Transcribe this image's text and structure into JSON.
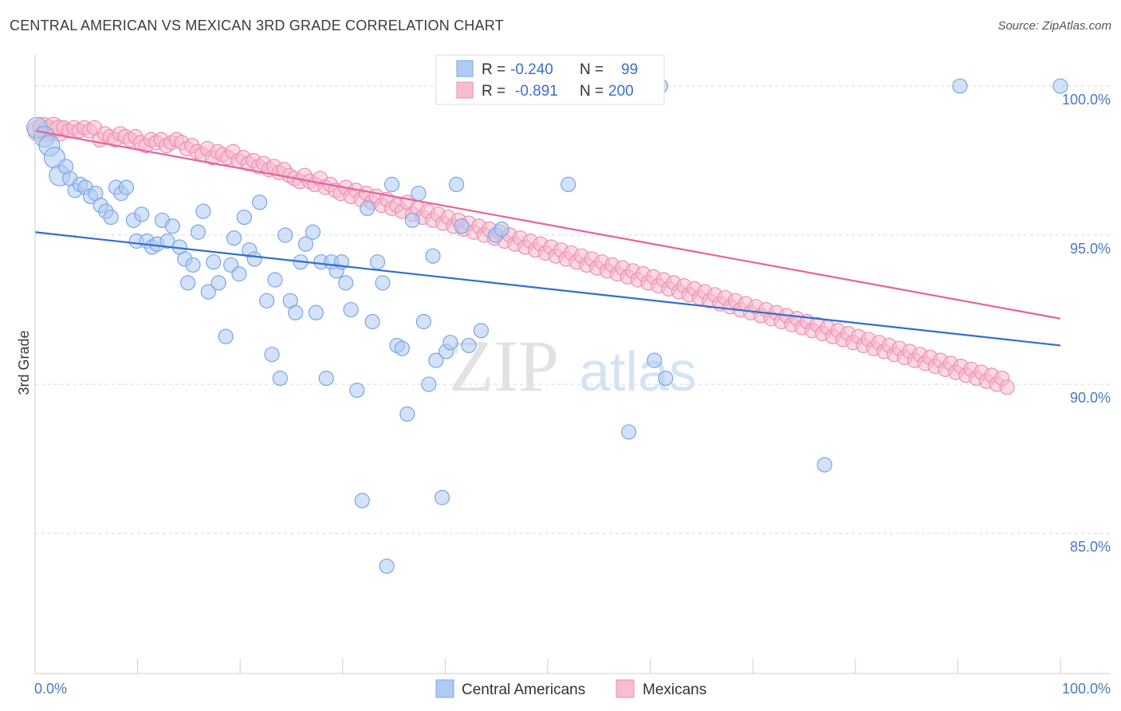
{
  "title": "CENTRAL AMERICAN VS MEXICAN 3RD GRADE CORRELATION CHART",
  "source": "Source: ZipAtlas.com",
  "watermark": {
    "part1": "ZIP",
    "part2": "atlas"
  },
  "legend": {
    "r_label": "R =",
    "n_label": "N =",
    "rows": [
      {
        "series": "Central Americans",
        "r": "-0.240",
        "n": "99"
      },
      {
        "series": "Mexicans",
        "r": "-0.891",
        "n": "200"
      }
    ]
  },
  "colors": {
    "blue_fill": "#aecbf3",
    "blue_stroke": "#7aa6e6",
    "blue_line": "#2f6fd0",
    "pink_fill": "#f7bcd0",
    "pink_stroke": "#ee8fb0",
    "pink_line": "#e8629a",
    "tick_text": "#4a78c4",
    "grid": "#d8d8d8"
  },
  "chart_data": {
    "type": "scatter",
    "title": "CENTRAL AMERICAN VS MEXICAN 3RD GRADE CORRELATION CHART",
    "xlabel": "",
    "ylabel": "3rd Grade",
    "xlim": [
      0,
      100
    ],
    "ylim": [
      80.3,
      100.8
    ],
    "x_tick_labels": [
      "0.0%",
      "100.0%"
    ],
    "y_ticks": [
      {
        "value": 100,
        "label": "100.0%"
      },
      {
        "value": 95,
        "label": "95.0%"
      },
      {
        "value": 90,
        "label": "90.0%"
      },
      {
        "value": 85,
        "label": "85.0%"
      }
    ],
    "grid": "horizontal dashed",
    "legend_position": "top-center",
    "series": [
      {
        "name": "Central Americans",
        "color": "#7aa6e6",
        "trend": {
          "x": [
            0,
            100
          ],
          "y": [
            95.1,
            91.3
          ]
        },
        "points": [
          [
            0.2,
            98.6
          ],
          [
            0.9,
            98.3
          ],
          [
            1.4,
            98.0
          ],
          [
            1.9,
            97.6
          ],
          [
            2.4,
            97.0
          ],
          [
            3.0,
            97.3
          ],
          [
            3.4,
            96.9
          ],
          [
            3.9,
            96.5
          ],
          [
            4.4,
            96.7
          ],
          [
            4.9,
            96.6
          ],
          [
            5.4,
            96.3
          ],
          [
            5.9,
            96.4
          ],
          [
            6.4,
            96.0
          ],
          [
            6.9,
            95.8
          ],
          [
            7.4,
            95.6
          ],
          [
            7.9,
            96.6
          ],
          [
            8.4,
            96.4
          ],
          [
            8.9,
            96.6
          ],
          [
            9.6,
            95.5
          ],
          [
            9.9,
            94.8
          ],
          [
            10.4,
            95.7
          ],
          [
            10.9,
            94.8
          ],
          [
            11.4,
            94.6
          ],
          [
            11.9,
            94.7
          ],
          [
            12.4,
            95.5
          ],
          [
            12.9,
            94.8
          ],
          [
            13.4,
            95.3
          ],
          [
            14.1,
            94.6
          ],
          [
            14.6,
            94.2
          ],
          [
            14.9,
            93.4
          ],
          [
            15.4,
            94.0
          ],
          [
            15.9,
            95.1
          ],
          [
            16.4,
            95.8
          ],
          [
            16.9,
            93.1
          ],
          [
            17.4,
            94.1
          ],
          [
            17.9,
            93.4
          ],
          [
            18.6,
            91.6
          ],
          [
            19.1,
            94.0
          ],
          [
            19.4,
            94.9
          ],
          [
            19.9,
            93.7
          ],
          [
            20.4,
            95.6
          ],
          [
            20.9,
            94.5
          ],
          [
            21.4,
            94.2
          ],
          [
            21.9,
            96.1
          ],
          [
            22.6,
            92.8
          ],
          [
            23.1,
            91.0
          ],
          [
            23.4,
            93.5
          ],
          [
            23.9,
            90.2
          ],
          [
            24.4,
            95.0
          ],
          [
            24.9,
            92.8
          ],
          [
            25.4,
            92.4
          ],
          [
            25.9,
            94.1
          ],
          [
            26.4,
            94.7
          ],
          [
            27.1,
            95.1
          ],
          [
            27.4,
            92.4
          ],
          [
            27.9,
            94.1
          ],
          [
            28.4,
            90.2
          ],
          [
            28.9,
            94.1
          ],
          [
            29.4,
            93.8
          ],
          [
            29.9,
            94.1
          ],
          [
            30.3,
            93.4
          ],
          [
            30.8,
            92.5
          ],
          [
            31.4,
            89.8
          ],
          [
            31.9,
            86.1
          ],
          [
            32.4,
            95.9
          ],
          [
            32.9,
            92.1
          ],
          [
            33.4,
            94.1
          ],
          [
            33.9,
            93.4
          ],
          [
            34.3,
            83.9
          ],
          [
            34.8,
            96.7
          ],
          [
            35.3,
            91.3
          ],
          [
            35.8,
            91.2
          ],
          [
            36.3,
            89.0
          ],
          [
            36.8,
            95.5
          ],
          [
            37.4,
            96.4
          ],
          [
            37.9,
            92.1
          ],
          [
            38.4,
            90.0
          ],
          [
            38.8,
            94.3
          ],
          [
            39.1,
            90.8
          ],
          [
            39.7,
            86.2
          ],
          [
            40.1,
            91.1
          ],
          [
            40.5,
            91.4
          ],
          [
            41.1,
            96.7
          ],
          [
            41.6,
            95.3
          ],
          [
            42.3,
            91.3
          ],
          [
            43.5,
            91.8
          ],
          [
            44.9,
            95.0
          ],
          [
            45.5,
            95.2
          ],
          [
            52.0,
            96.7
          ],
          [
            57.9,
            88.4
          ],
          [
            60.4,
            90.8
          ],
          [
            61.5,
            90.2
          ],
          [
            61.0,
            100.0
          ],
          [
            77.0,
            87.3
          ],
          [
            90.2,
            100.0
          ],
          [
            100.0,
            100.0
          ],
          [
            49.5,
            100.0
          ]
        ]
      },
      {
        "name": "Mexicans",
        "color": "#ee8fb0",
        "trend": {
          "x": [
            0,
            100
          ],
          "y": [
            98.5,
            92.2
          ]
        },
        "points": [
          [
            0.3,
            98.5
          ],
          [
            0.8,
            98.6
          ],
          [
            1.3,
            98.5
          ],
          [
            1.8,
            98.6
          ],
          [
            2.3,
            98.5
          ],
          [
            2.8,
            98.6
          ],
          [
            3.3,
            98.5
          ],
          [
            3.8,
            98.6
          ],
          [
            4.3,
            98.5
          ],
          [
            4.8,
            98.6
          ],
          [
            5.3,
            98.5
          ],
          [
            5.8,
            98.6
          ],
          [
            6.3,
            98.2
          ],
          [
            6.8,
            98.4
          ],
          [
            7.3,
            98.3
          ],
          [
            7.8,
            98.2
          ],
          [
            8.3,
            98.4
          ],
          [
            8.8,
            98.3
          ],
          [
            9.3,
            98.2
          ],
          [
            9.8,
            98.3
          ],
          [
            10.3,
            98.1
          ],
          [
            10.8,
            98.0
          ],
          [
            11.3,
            98.2
          ],
          [
            11.8,
            98.1
          ],
          [
            12.3,
            98.2
          ],
          [
            12.8,
            98.0
          ],
          [
            13.3,
            98.1
          ],
          [
            13.8,
            98.2
          ],
          [
            14.3,
            98.1
          ],
          [
            14.8,
            97.9
          ],
          [
            15.3,
            98.0
          ],
          [
            15.8,
            97.8
          ],
          [
            16.3,
            97.7
          ],
          [
            16.8,
            97.9
          ],
          [
            17.3,
            97.6
          ],
          [
            17.8,
            97.8
          ],
          [
            18.3,
            97.7
          ],
          [
            18.8,
            97.6
          ],
          [
            19.3,
            97.8
          ],
          [
            19.8,
            97.5
          ],
          [
            20.3,
            97.6
          ],
          [
            20.8,
            97.4
          ],
          [
            21.3,
            97.5
          ],
          [
            21.8,
            97.3
          ],
          [
            22.3,
            97.4
          ],
          [
            22.8,
            97.2
          ],
          [
            23.3,
            97.3
          ],
          [
            23.8,
            97.1
          ],
          [
            24.3,
            97.2
          ],
          [
            24.8,
            97.0
          ],
          [
            25.3,
            96.9
          ],
          [
            25.8,
            96.8
          ],
          [
            26.3,
            97.0
          ],
          [
            26.8,
            96.8
          ],
          [
            27.3,
            96.7
          ],
          [
            27.8,
            96.9
          ],
          [
            28.3,
            96.6
          ],
          [
            28.8,
            96.7
          ],
          [
            29.3,
            96.5
          ],
          [
            29.8,
            96.4
          ],
          [
            30.3,
            96.6
          ],
          [
            30.8,
            96.3
          ],
          [
            31.3,
            96.5
          ],
          [
            31.8,
            96.2
          ],
          [
            32.3,
            96.4
          ],
          [
            32.8,
            96.1
          ],
          [
            33.3,
            96.3
          ],
          [
            33.8,
            96.0
          ],
          [
            34.3,
            96.2
          ],
          [
            34.8,
            95.9
          ],
          [
            35.3,
            96.0
          ],
          [
            35.8,
            95.8
          ],
          [
            36.3,
            96.1
          ],
          [
            36.8,
            95.7
          ],
          [
            37.3,
            95.9
          ],
          [
            37.8,
            95.6
          ],
          [
            38.3,
            95.8
          ],
          [
            38.8,
            95.5
          ],
          [
            39.3,
            95.7
          ],
          [
            39.8,
            95.4
          ],
          [
            40.3,
            95.6
          ],
          [
            40.8,
            95.3
          ],
          [
            41.3,
            95.5
          ],
          [
            41.8,
            95.2
          ],
          [
            42.3,
            95.4
          ],
          [
            42.8,
            95.1
          ],
          [
            43.3,
            95.3
          ],
          [
            43.8,
            95.0
          ],
          [
            44.3,
            95.2
          ],
          [
            44.8,
            94.9
          ],
          [
            45.3,
            95.1
          ],
          [
            45.8,
            94.8
          ],
          [
            46.3,
            95.0
          ],
          [
            46.8,
            94.7
          ],
          [
            47.3,
            94.9
          ],
          [
            47.8,
            94.6
          ],
          [
            48.3,
            94.8
          ],
          [
            48.8,
            94.5
          ],
          [
            49.3,
            94.7
          ],
          [
            49.8,
            94.4
          ],
          [
            50.3,
            94.6
          ],
          [
            50.8,
            94.3
          ],
          [
            51.3,
            94.5
          ],
          [
            51.8,
            94.2
          ],
          [
            52.3,
            94.4
          ],
          [
            52.8,
            94.1
          ],
          [
            53.3,
            94.3
          ],
          [
            53.8,
            94.0
          ],
          [
            54.3,
            94.2
          ],
          [
            54.8,
            93.9
          ],
          [
            55.3,
            94.1
          ],
          [
            55.8,
            93.8
          ],
          [
            56.3,
            94.0
          ],
          [
            56.8,
            93.7
          ],
          [
            57.3,
            93.9
          ],
          [
            57.8,
            93.6
          ],
          [
            58.3,
            93.8
          ],
          [
            58.8,
            93.5
          ],
          [
            59.3,
            93.7
          ],
          [
            59.8,
            93.4
          ],
          [
            60.3,
            93.6
          ],
          [
            60.8,
            93.3
          ],
          [
            61.3,
            93.5
          ],
          [
            61.8,
            93.2
          ],
          [
            62.3,
            93.4
          ],
          [
            62.8,
            93.1
          ],
          [
            63.3,
            93.3
          ],
          [
            63.8,
            93.0
          ],
          [
            64.3,
            93.2
          ],
          [
            64.8,
            92.9
          ],
          [
            65.3,
            93.1
          ],
          [
            65.8,
            92.8
          ],
          [
            66.3,
            93.0
          ],
          [
            66.8,
            92.7
          ],
          [
            67.3,
            92.9
          ],
          [
            67.8,
            92.6
          ],
          [
            68.3,
            92.8
          ],
          [
            68.8,
            92.5
          ],
          [
            69.3,
            92.7
          ],
          [
            69.8,
            92.4
          ],
          [
            70.3,
            92.6
          ],
          [
            70.8,
            92.3
          ],
          [
            71.3,
            92.5
          ],
          [
            71.8,
            92.2
          ],
          [
            72.3,
            92.4
          ],
          [
            72.8,
            92.1
          ],
          [
            73.3,
            92.3
          ],
          [
            73.8,
            92.0
          ],
          [
            74.3,
            92.2
          ],
          [
            74.8,
            91.9
          ],
          [
            75.3,
            92.1
          ],
          [
            75.8,
            91.8
          ],
          [
            76.3,
            92.0
          ],
          [
            76.8,
            91.7
          ],
          [
            77.3,
            91.9
          ],
          [
            77.8,
            91.6
          ],
          [
            78.3,
            91.8
          ],
          [
            78.8,
            91.5
          ],
          [
            79.3,
            91.7
          ],
          [
            79.8,
            91.4
          ],
          [
            80.3,
            91.6
          ],
          [
            80.8,
            91.3
          ],
          [
            81.3,
            91.5
          ],
          [
            81.8,
            91.2
          ],
          [
            82.3,
            91.4
          ],
          [
            82.8,
            91.1
          ],
          [
            83.3,
            91.3
          ],
          [
            83.8,
            91.0
          ],
          [
            84.3,
            91.2
          ],
          [
            84.8,
            90.9
          ],
          [
            85.3,
            91.1
          ],
          [
            85.8,
            90.8
          ],
          [
            86.3,
            91.0
          ],
          [
            86.8,
            90.7
          ],
          [
            87.3,
            90.9
          ],
          [
            87.8,
            90.6
          ],
          [
            88.3,
            90.8
          ],
          [
            88.8,
            90.5
          ],
          [
            89.3,
            90.7
          ],
          [
            89.8,
            90.4
          ],
          [
            90.3,
            90.6
          ],
          [
            90.8,
            90.3
          ],
          [
            91.3,
            90.5
          ],
          [
            91.8,
            90.2
          ],
          [
            92.3,
            90.4
          ],
          [
            92.8,
            90.1
          ],
          [
            93.3,
            90.3
          ],
          [
            93.8,
            90.0
          ],
          [
            94.3,
            90.2
          ],
          [
            94.8,
            89.9
          ]
        ]
      }
    ]
  },
  "mexican_scatter_jitter_note": ""
}
